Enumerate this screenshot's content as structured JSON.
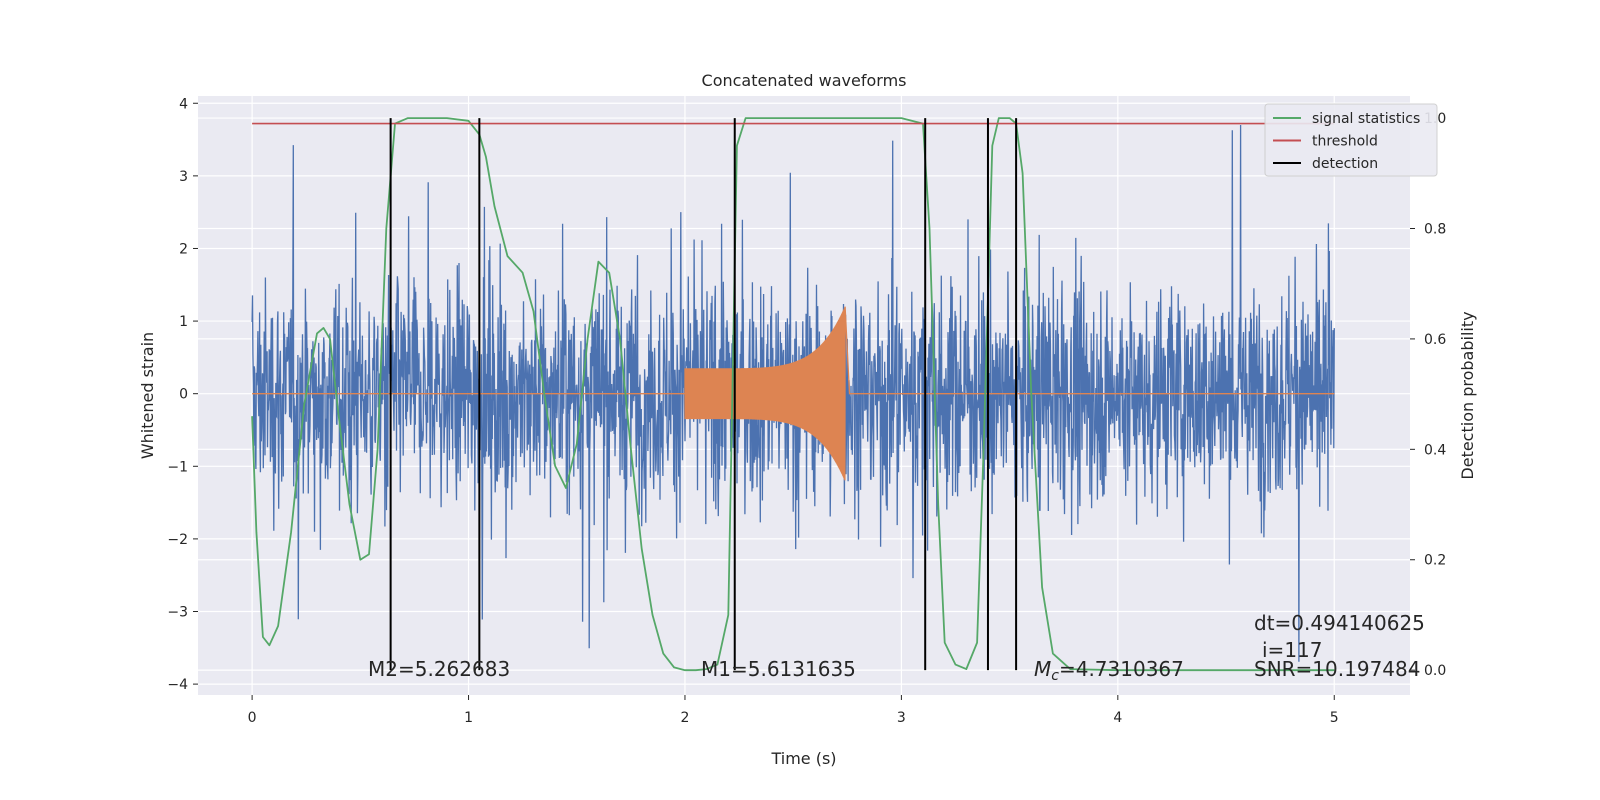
{
  "chart_data": {
    "type": "line",
    "title": "Concatenated waveforms",
    "xlabel": "Time (s)",
    "ylabel": "Whitened strain",
    "ylabel_right": "Detection probability",
    "xlim": [
      -0.25,
      5.35
    ],
    "ylim": [
      -4.15,
      4.1
    ],
    "ylim_right": [
      -0.045,
      1.04
    ],
    "x_ticks": [
      0,
      1,
      2,
      3,
      4,
      5
    ],
    "x_tick_labels": [
      "0",
      "1",
      "2",
      "3",
      "4",
      "5"
    ],
    "y_ticks": [
      -4,
      -3,
      -2,
      -1,
      0,
      1,
      2,
      3,
      4
    ],
    "y_tick_labels": [
      "−4",
      "−3",
      "−2",
      "−1",
      "0",
      "1",
      "2",
      "3",
      "4"
    ],
    "y_right_ticks": [
      0.0,
      0.2,
      0.4,
      0.6,
      0.8,
      1.0
    ],
    "y_right_tick_labels": [
      "0.0",
      "0.2",
      "0.4",
      "0.6",
      "0.8",
      "1.0"
    ],
    "grid": true,
    "legend_position": "top-right",
    "colors": {
      "background": "#eaeaf2",
      "noise": "#4c72b0",
      "waveform": "#dd8452",
      "signal_statistics": "#55a868",
      "threshold": "#c44e52",
      "detection": "#000000"
    },
    "series": [
      {
        "name": "whitened strain",
        "axis": "left",
        "description_range": [
          0,
          5
        ],
        "amplitude_envelope": {
          "typical": 2.3,
          "max": 3.7,
          "min": -3.8
        }
      },
      {
        "name": "waveform",
        "axis": "left",
        "x_range": [
          2.0,
          2.74
        ],
        "amplitude_start": 0.35,
        "amplitude_peak": 1.2
      },
      {
        "name": "signal statistics",
        "axis": "right",
        "x": [
          0.0,
          0.02,
          0.05,
          0.08,
          0.12,
          0.18,
          0.24,
          0.3,
          0.33,
          0.36,
          0.4,
          0.45,
          0.5,
          0.54,
          0.58,
          0.62,
          0.66,
          0.72,
          0.8,
          0.9,
          1.0,
          1.05,
          1.08,
          1.12,
          1.18,
          1.25,
          1.3,
          1.35,
          1.4,
          1.45,
          1.5,
          1.55,
          1.6,
          1.65,
          1.7,
          1.75,
          1.8,
          1.85,
          1.9,
          1.95,
          2.0,
          2.05,
          2.1,
          2.15,
          2.2,
          2.24,
          2.28,
          2.35,
          2.5,
          2.8,
          3.0,
          3.1,
          3.13,
          3.17,
          3.2,
          3.25,
          3.3,
          3.35,
          3.38,
          3.42,
          3.45,
          3.5,
          3.53,
          3.56,
          3.6,
          3.65,
          3.7,
          3.78,
          4.0,
          4.5,
          5.0
        ],
        "y": [
          0.46,
          0.25,
          0.06,
          0.045,
          0.08,
          0.25,
          0.48,
          0.61,
          0.62,
          0.6,
          0.46,
          0.3,
          0.2,
          0.21,
          0.4,
          0.8,
          0.99,
          1.0,
          1.0,
          1.0,
          0.995,
          0.97,
          0.93,
          0.84,
          0.75,
          0.72,
          0.65,
          0.5,
          0.37,
          0.33,
          0.41,
          0.6,
          0.74,
          0.72,
          0.6,
          0.4,
          0.22,
          0.1,
          0.03,
          0.005,
          0.0,
          0.0,
          0.002,
          0.01,
          0.1,
          0.95,
          1.0,
          1.0,
          1.0,
          1.0,
          1.0,
          0.99,
          0.8,
          0.3,
          0.05,
          0.01,
          0.002,
          0.05,
          0.4,
          0.95,
          1.0,
          1.0,
          0.99,
          0.9,
          0.5,
          0.15,
          0.03,
          0.002,
          0.0,
          0.0,
          0.0
        ]
      },
      {
        "name": "threshold",
        "axis": "right",
        "x": [
          0,
          5
        ],
        "y": [
          0.99,
          0.99
        ]
      },
      {
        "name": "detection",
        "axis": "right",
        "x_positions": [
          0.64,
          1.05,
          2.23,
          3.11,
          3.4,
          3.53
        ],
        "y_range": [
          0.0,
          1.0
        ]
      }
    ],
    "legend": [
      "signal statistics",
      "threshold",
      "detection"
    ],
    "annotations": {
      "m2": "M2=5.262683",
      "m1": "M1=5.6131635",
      "mc_symbol": "M",
      "mc_subscript": "c",
      "mc_value": "=4.7310367",
      "dt": "dt=0.494140625",
      "i": "i=117",
      "snr": "SNR=10.197484"
    }
  }
}
